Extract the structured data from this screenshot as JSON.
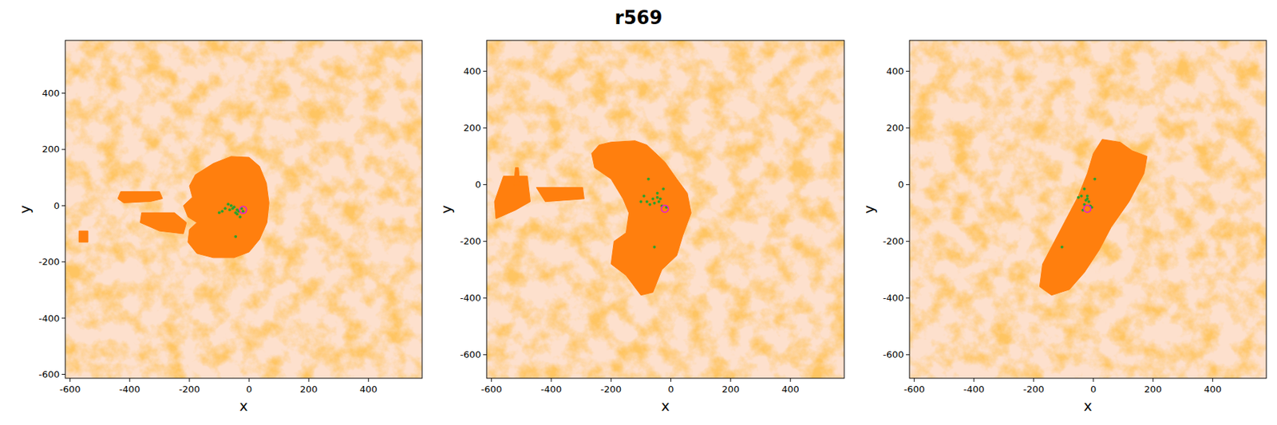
{
  "chart_data": [
    {
      "type": "scatter",
      "title": "r569",
      "xlabel": "x",
      "ylabel": "y",
      "xlim": [
        -616,
        580
      ],
      "ylim": [
        -614,
        588
      ],
      "xticks": [
        -600,
        -400,
        -200,
        0,
        200,
        400
      ],
      "yticks": [
        -600,
        -400,
        -200,
        0,
        200,
        400
      ],
      "series": [
        {
          "type": "area",
          "color": "#ff7f0e",
          "x": [
            -120,
            -60,
            0,
            35,
            58,
            67,
            60,
            35,
            0,
            -50,
            -120,
            -175,
            -205,
            -200,
            -175,
            -205,
            -220,
            -190,
            -200,
            -180,
            -150,
            null,
            -430,
            -300,
            -290,
            -330,
            -420,
            -440,
            null,
            -360,
            -250,
            -210,
            -220,
            -300,
            -365,
            null,
            -570,
            -540,
            -540,
            -570
          ],
          "y": [
            150,
            175,
            172,
            140,
            80,
            10,
            -60,
            -120,
            -165,
            -185,
            -185,
            -170,
            -130,
            -85,
            -60,
            -40,
            0,
            30,
            70,
            110,
            130,
            null,
            50,
            50,
            25,
            15,
            10,
            25,
            null,
            -25,
            -25,
            -60,
            -100,
            -90,
            -60,
            null,
            -90,
            -90,
            -130,
            -130
          ]
        },
        {
          "type": "scatter",
          "color": "#2ca02c",
          "marker": "circle",
          "x": [
            -90,
            -80,
            -70,
            -60,
            -55,
            -50,
            -45,
            -40,
            -35,
            -30,
            -40,
            -65,
            -100,
            -45,
            -25,
            -20
          ],
          "y": [
            -20,
            -10,
            5,
            0,
            -10,
            -5,
            -25,
            -30,
            -20,
            -40,
            -15,
            -15,
            -25,
            -110,
            -10,
            -20
          ]
        },
        {
          "type": "scatter",
          "color": "#e31ad8",
          "marker": "ring",
          "x": [
            -20
          ],
          "y": [
            -15
          ]
        }
      ]
    },
    {
      "type": "scatter",
      "xlabel": "x",
      "ylabel": "y",
      "xlim": [
        -616,
        580
      ],
      "ylim": [
        -683,
        509
      ],
      "xticks": [
        -600,
        -400,
        -200,
        0,
        200,
        400
      ],
      "yticks": [
        -600,
        -400,
        -200,
        0,
        200,
        400
      ],
      "series": [
        {
          "type": "area",
          "color": "#ff7f0e",
          "x": [
            -200,
            -120,
            -80,
            -20,
            20,
            55,
            68,
            40,
            20,
            -30,
            -60,
            -100,
            -150,
            -200,
            -190,
            -150,
            -140,
            -160,
            -200,
            -255,
            -265,
            -240,
            null,
            -450,
            -295,
            -290,
            -420,
            null,
            -560,
            -480,
            -470,
            -520,
            -585,
            -590,
            null,
            -520,
            -510,
            -505,
            -525
          ],
          "y": [
            150,
            155,
            140,
            80,
            20,
            -30,
            -100,
            -180,
            -250,
            -300,
            -380,
            -390,
            -320,
            -280,
            -200,
            -170,
            -100,
            -50,
            20,
            60,
            110,
            140,
            null,
            -10,
            -10,
            -50,
            -60,
            null,
            30,
            30,
            -60,
            -90,
            -120,
            -60,
            null,
            60,
            60,
            0,
            0
          ]
        },
        {
          "type": "scatter",
          "color": "#2ca02c",
          "marker": "circle",
          "x": [
            -75,
            -90,
            -80,
            -70,
            -60,
            -55,
            -45,
            -40,
            -35,
            -30,
            -25,
            -45,
            -55,
            -100,
            -15
          ],
          "y": [
            20,
            -40,
            -60,
            -70,
            -50,
            -65,
            -45,
            -60,
            -50,
            -75,
            -15,
            -30,
            -220,
            -60,
            -80
          ]
        },
        {
          "type": "scatter",
          "color": "#e31ad8",
          "marker": "ring",
          "x": [
            -20
          ],
          "y": [
            -85
          ]
        }
      ]
    },
    {
      "type": "scatter",
      "xlabel": "x",
      "ylabel": "y",
      "xlim": [
        -616,
        580
      ],
      "ylim": [
        -683,
        509
      ],
      "xticks": [
        -600,
        -400,
        -200,
        0,
        200,
        400
      ],
      "yticks": [
        -600,
        -400,
        -200,
        0,
        200,
        400
      ],
      "series": [
        {
          "type": "area",
          "color": "#ff7f0e",
          "x": [
            30,
            90,
            130,
            180,
            170,
            120,
            60,
            20,
            -30,
            -80,
            -140,
            -180,
            -170,
            -130,
            -90,
            -50,
            -20,
            0
          ],
          "y": [
            160,
            150,
            120,
            100,
            40,
            -60,
            -150,
            -230,
            -310,
            -370,
            -390,
            -360,
            -280,
            -200,
            -120,
            -40,
            40,
            110
          ]
        },
        {
          "type": "scatter",
          "color": "#2ca02c",
          "marker": "circle",
          "x": [
            5,
            -30,
            -40,
            -50,
            -25,
            -20,
            -15,
            -30,
            -10,
            -5,
            -20,
            -105,
            -35
          ],
          "y": [
            20,
            -15,
            -40,
            -45,
            -55,
            -50,
            -60,
            -70,
            -75,
            -80,
            -40,
            -220,
            -90
          ]
        },
        {
          "type": "scatter",
          "color": "#e31ad8",
          "marker": "ring",
          "x": [
            -20
          ],
          "y": [
            -85
          ]
        }
      ]
    }
  ]
}
